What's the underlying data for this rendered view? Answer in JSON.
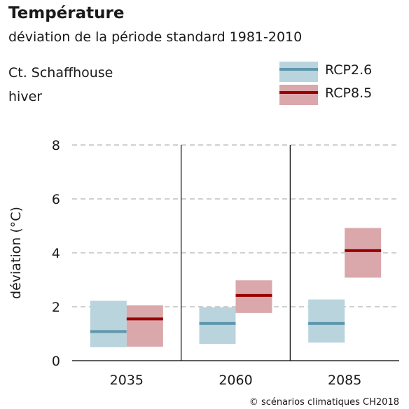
{
  "header": {
    "title": "Température",
    "subtitle": "déviation de la période standard 1981-2010",
    "region": "Ct. Schaffhouse",
    "season": "hiver"
  },
  "legend": [
    {
      "label": "RCP2.6",
      "fill": "#b9d4dd",
      "line": "#5e97ad"
    },
    {
      "label": "RCP8.5",
      "fill": "#daa7ab",
      "line": "#990000"
    }
  ],
  "credit": "© scénarios climatiques CH2018",
  "chart_data": {
    "type": "box",
    "title": "Température",
    "subtitle": "déviation de la période standard 1981-2010",
    "ylabel": "déviation (°C)",
    "xlabel": "",
    "ylim": [
      0,
      8
    ],
    "yticks": [
      0,
      2,
      4,
      6,
      8
    ],
    "grid": true,
    "legend_position": "top-right",
    "categories": [
      "2035",
      "2060",
      "2085"
    ],
    "series": [
      {
        "name": "RCP2.6",
        "color_fill": "#b9d4dd",
        "color_line": "#5e97ad",
        "low": [
          0.5,
          0.62,
          0.67
        ],
        "median": [
          1.08,
          1.38,
          1.38
        ],
        "high": [
          2.22,
          1.98,
          2.27
        ]
      },
      {
        "name": "RCP8.5",
        "color_fill": "#daa7ab",
        "color_line": "#990000",
        "low": [
          0.52,
          1.77,
          3.08
        ],
        "median": [
          1.55,
          2.42,
          4.08
        ],
        "high": [
          2.05,
          2.98,
          4.92
        ]
      }
    ]
  }
}
